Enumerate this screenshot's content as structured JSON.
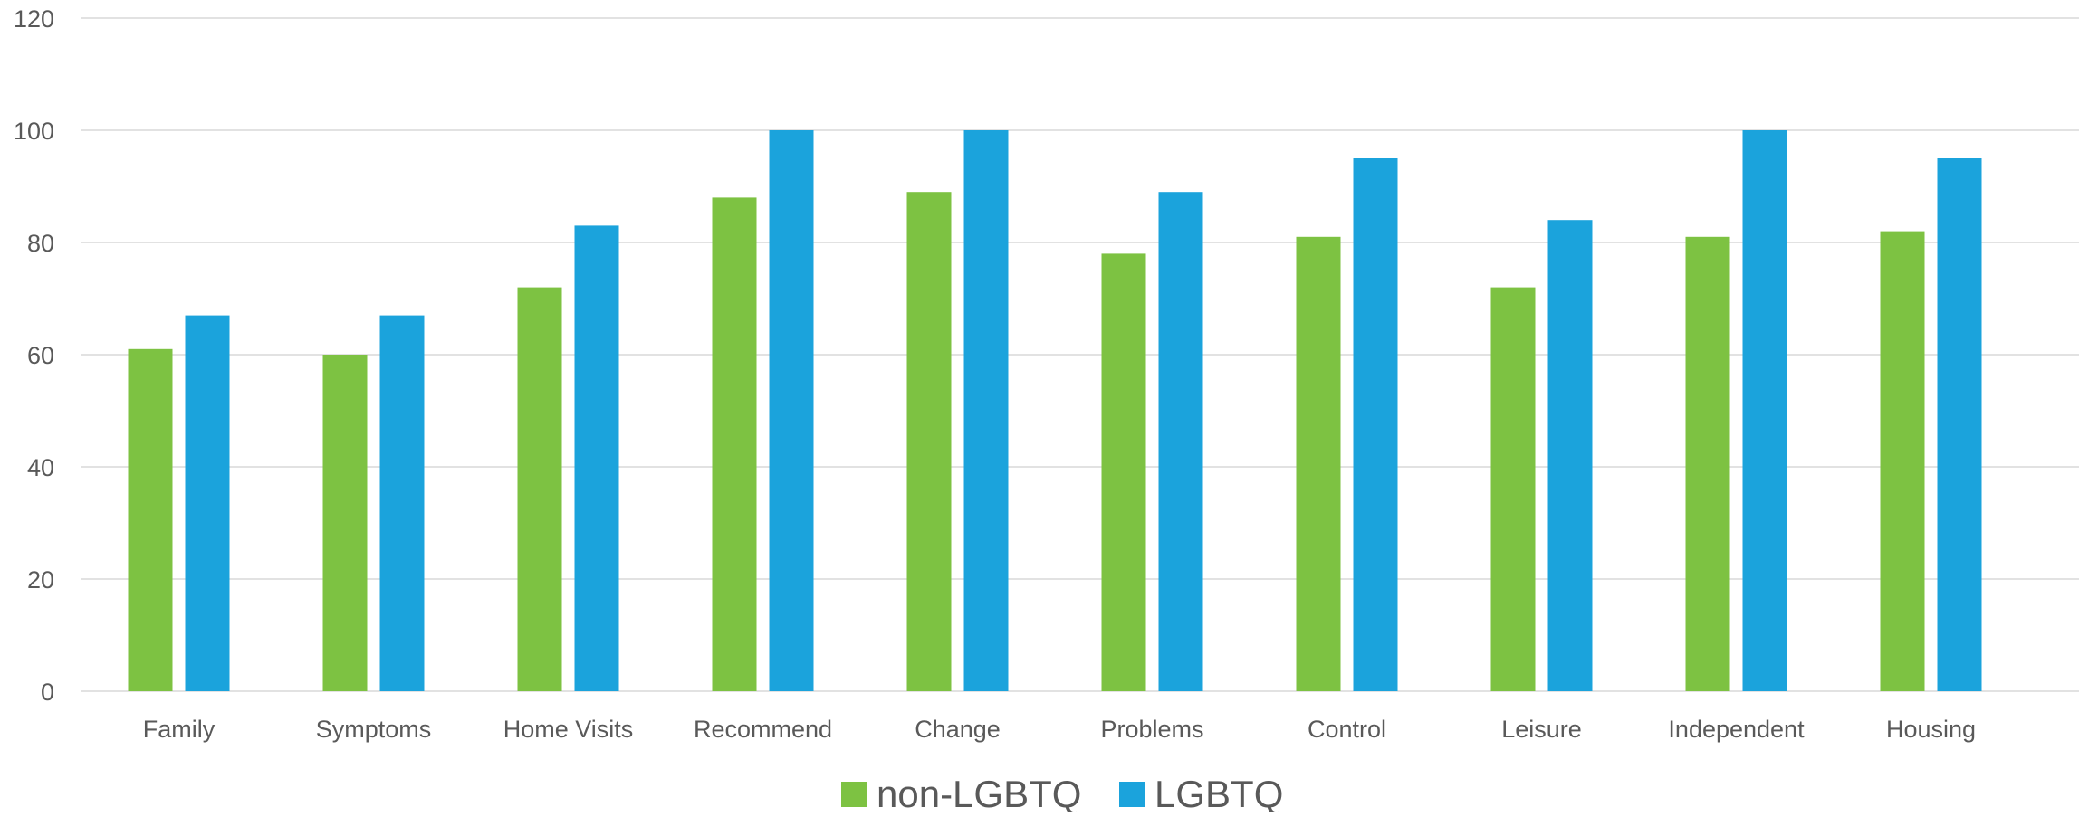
{
  "chart_data": {
    "type": "bar",
    "title": "",
    "xlabel": "",
    "ylabel": "",
    "ylim": [
      0,
      120
    ],
    "yticks": [
      0,
      20,
      40,
      60,
      80,
      100,
      120
    ],
    "grid": true,
    "legend_position": "bottom",
    "categories": [
      "Family",
      "Symptoms",
      "Home Visits",
      "Recommend",
      "Change",
      "Problems",
      "Control",
      "Leisure",
      "Independent",
      "Housing"
    ],
    "series": [
      {
        "name": "non-LGBTQ",
        "color": "#7dc242",
        "values": [
          61,
          60,
          72,
          88,
          89,
          78,
          81,
          72,
          81,
          82
        ]
      },
      {
        "name": "LGBTQ",
        "color": "#1ba3dc",
        "values": [
          67,
          67,
          83,
          100,
          100,
          89,
          95,
          84,
          100,
          95
        ]
      }
    ]
  }
}
